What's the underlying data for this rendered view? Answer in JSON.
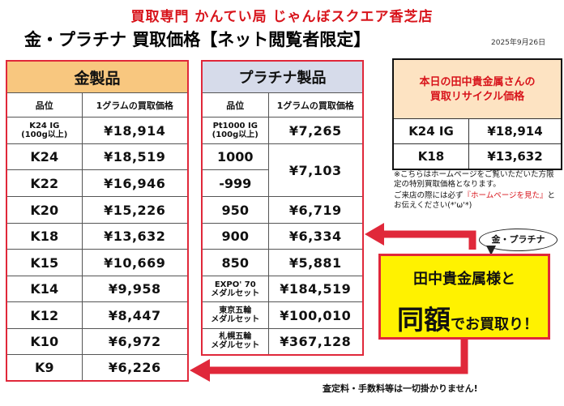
{
  "header": {
    "shop_title": "買取専門 かんてい局 じゃんぼスクエア香芝店",
    "main_title": "金・プラチナ 買取価格【ネット閲覧者限定】",
    "date": "2025年9月26日"
  },
  "gold": {
    "title": "金製品",
    "col_grade": "品位",
    "col_price": "1グラムの買取価格",
    "rows": [
      {
        "grade_line1": "K24 IG",
        "grade_line2": "(100g以上)",
        "price": "¥18,914"
      },
      {
        "grade": "K24",
        "price": "¥18,519"
      },
      {
        "grade": "K22",
        "price": "¥16,946"
      },
      {
        "grade": "K20",
        "price": "¥15,226"
      },
      {
        "grade": "K18",
        "price": "¥13,632"
      },
      {
        "grade": "K15",
        "price": "¥10,669"
      },
      {
        "grade": "K14",
        "price": "¥9,958"
      },
      {
        "grade": "K12",
        "price": "¥8,447"
      },
      {
        "grade": "K10",
        "price": "¥6,972"
      },
      {
        "grade": "K9",
        "price": "¥6,226"
      }
    ]
  },
  "platinum": {
    "title": "プラチナ製品",
    "col_grade": "品位",
    "col_price": "1グラムの買取価格",
    "pt1000_line1": "Pt1000 IG",
    "pt1000_line2": "(100g以上)",
    "pt1000_price": "¥7,265",
    "g1000": "1000",
    "g999": "-999",
    "price_1000_999": "¥7,103",
    "rows": [
      {
        "grade": "950",
        "price": "¥6,719"
      },
      {
        "grade": "900",
        "price": "¥6,334"
      },
      {
        "grade": "850",
        "price": "¥5,881"
      }
    ],
    "sets": [
      {
        "line1": "EXPO' 70",
        "line2": "メダルセット",
        "price": "¥184,519"
      },
      {
        "line1": "東京五輪",
        "line2": "メダルセット",
        "price": "¥100,010"
      },
      {
        "line1": "札幌五輪",
        "line2": "メダルセット",
        "price": "¥367,128"
      }
    ]
  },
  "recycle": {
    "title_line1": "本日の田中貴金属さんの",
    "title_line2": "買取リサイクル価格",
    "rows": [
      {
        "grade": "K24 IG",
        "price": "¥18,914"
      },
      {
        "grade": "K18",
        "price": "¥13,632"
      }
    ]
  },
  "notes": {
    "note1": "※こちらはホームページをご覧いただいた方限定の特別買取価格となります。",
    "note2_pre": "ご来店の際には必ず",
    "note2_red": "『ホームページを見た』",
    "note2_post": "とお伝えください(*'ω'*)"
  },
  "bubble": "金・プラチナ",
  "promo": {
    "line1": "田中貴金属様と",
    "big": "同額",
    "small": "でお買取り！"
  },
  "footer": "査定料・手数料等は一切掛かりません!",
  "colors": {
    "accent_red": "#d8141b",
    "gold_header": "#f8c77f",
    "platinum_header": "#d6dbea",
    "recycle_header": "#fde3c2",
    "promo_yellow": "#fff200"
  }
}
